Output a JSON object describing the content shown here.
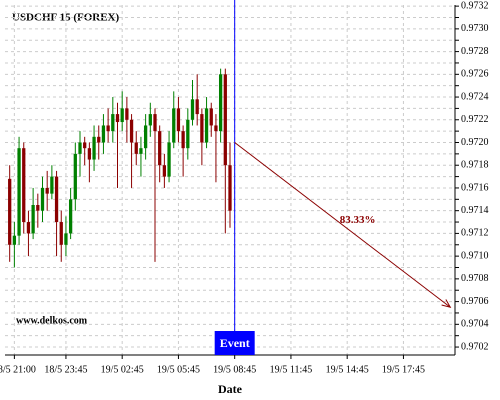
{
  "chart_data": {
    "type": "candlestick",
    "title": "USDCHF 15 (FOREX)",
    "watermark": "www.delkos.com",
    "x_label": "Date",
    "up_color": "#008000",
    "down_color": "#8b0000",
    "x": [
      "18/5 20:45",
      "18/5 21:00",
      "18/5 21:15",
      "18/5 21:30",
      "18/5 21:45",
      "18/5 22:00",
      "18/5 22:15",
      "18/5 22:30",
      "18/5 22:45",
      "18/5 23:00",
      "18/5 23:15",
      "18/5 23:30",
      "18/5 23:45",
      "19/5 00:00",
      "19/5 00:15",
      "19/5 00:30",
      "19/5 00:45",
      "19/5 01:00",
      "19/5 01:15",
      "19/5 01:30",
      "19/5 01:45",
      "19/5 02:00",
      "19/5 02:15",
      "19/5 02:30",
      "19/5 02:45",
      "19/5 03:00",
      "19/5 03:15",
      "19/5 03:30",
      "19/5 03:45",
      "19/5 04:00",
      "19/5 04:15",
      "19/5 04:30",
      "19/5 04:45",
      "19/5 05:00",
      "19/5 05:15",
      "19/5 05:30",
      "19/5 05:45",
      "19/5 06:00",
      "19/5 06:15",
      "19/5 06:30",
      "19/5 06:45",
      "19/5 07:00",
      "19/5 07:15",
      "19/5 07:30",
      "19/5 07:45",
      "19/5 08:00",
      "19/5 08:15",
      "19/5 08:30"
    ],
    "open": [
      0.97168,
      0.9711,
      0.97118,
      0.97195,
      0.9713,
      0.9712,
      0.97145,
      0.9714,
      0.9716,
      0.97155,
      0.9717,
      0.9713,
      0.9711,
      0.9712,
      0.9715,
      0.9719,
      0.972,
      0.97195,
      0.97185,
      0.97205,
      0.972,
      0.97215,
      0.9721,
      0.97225,
      0.97218,
      0.9723,
      0.9722,
      0.972,
      0.9719,
      0.97195,
      0.97215,
      0.97225,
      0.9721,
      0.9718,
      0.9717,
      0.972,
      0.9723,
      0.9721,
      0.97195,
      0.9722,
      0.97238,
      0.97225,
      0.972,
      0.9723,
      0.97215,
      0.9721,
      0.9726,
      0.9718
    ],
    "high": [
      0.9718,
      0.9713,
      0.97205,
      0.972,
      0.9714,
      0.9716,
      0.97155,
      0.9717,
      0.97175,
      0.9718,
      0.97175,
      0.9714,
      0.97135,
      0.9716,
      0.972,
      0.9721,
      0.97205,
      0.972,
      0.97215,
      0.97215,
      0.97225,
      0.9723,
      0.9724,
      0.97235,
      0.97245,
      0.9724,
      0.97225,
      0.9721,
      0.97205,
      0.97225,
      0.97235,
      0.9723,
      0.97215,
      0.9719,
      0.9721,
      0.97245,
      0.9724,
      0.97215,
      0.9723,
      0.97255,
      0.9726,
      0.9723,
      0.9724,
      0.97235,
      0.97225,
      0.97265,
      0.97265,
      0.972
    ],
    "low": [
      0.97095,
      0.9709,
      0.9711,
      0.9712,
      0.971,
      0.97115,
      0.97125,
      0.9713,
      0.9714,
      0.9715,
      0.971,
      0.97095,
      0.971,
      0.97115,
      0.9714,
      0.9717,
      0.9718,
      0.97165,
      0.97175,
      0.97185,
      0.9719,
      0.972,
      0.972,
      0.9716,
      0.9721,
      0.972,
      0.9716,
      0.9718,
      0.9717,
      0.97185,
      0.97205,
      0.97095,
      0.97165,
      0.9716,
      0.97165,
      0.97195,
      0.972,
      0.9717,
      0.97185,
      0.97215,
      0.97215,
      0.9718,
      0.97195,
      0.97205,
      0.97165,
      0.972,
      0.9712,
      0.97125
    ],
    "close": [
      0.9711,
      0.97118,
      0.97195,
      0.9713,
      0.9712,
      0.97145,
      0.9714,
      0.9716,
      0.97155,
      0.9717,
      0.9713,
      0.9711,
      0.9712,
      0.9715,
      0.9719,
      0.972,
      0.97195,
      0.97185,
      0.97205,
      0.972,
      0.97215,
      0.9721,
      0.97225,
      0.97218,
      0.9723,
      0.9722,
      0.972,
      0.9719,
      0.97195,
      0.97215,
      0.97225,
      0.9721,
      0.9718,
      0.9717,
      0.972,
      0.9723,
      0.9721,
      0.97195,
      0.9722,
      0.97238,
      0.97225,
      0.972,
      0.9723,
      0.97215,
      0.9721,
      0.9726,
      0.9718,
      0.9714
    ],
    "xlim": [
      "18/5 20:30",
      "19/5 20:30"
    ],
    "xticks": [
      "18/5 21:00",
      "18/5 23:45",
      "19/5 02:45",
      "19/5 05:45",
      "19/5 08:45",
      "19/5 11:45",
      "19/5 14:45",
      "19/5 17:45"
    ],
    "ylim": [
      0.97013,
      0.97321
    ],
    "yticks": [
      0.9702,
      0.9703,
      0.9704,
      0.9705,
      0.9706,
      0.9707,
      0.9708,
      0.9709,
      {
        "value": 0.971,
        "label": "0.9710"
      },
      0.9711,
      0.9712,
      0.9713,
      0.9714,
      0.9715,
      0.9716,
      0.9717,
      0.9718,
      0.9719,
      {
        "value": 0.972,
        "label": "0.9720"
      },
      0.9721,
      0.9722,
      0.9723,
      0.9724,
      0.9725,
      0.9726,
      0.9727,
      0.9728,
      0.9729,
      {
        "value": 0.973,
        "label": "0.9730"
      },
      0.9731,
      0.9732
    ],
    "grid": true,
    "event": {
      "label": "Event",
      "x": "19/5 08:45",
      "color": "#0000ff"
    },
    "projection": {
      "label": "83.33%",
      "from_y": 0.972,
      "to_x": "19/5 20:15",
      "to_y": 0.97055,
      "color": "#8b0000"
    }
  }
}
